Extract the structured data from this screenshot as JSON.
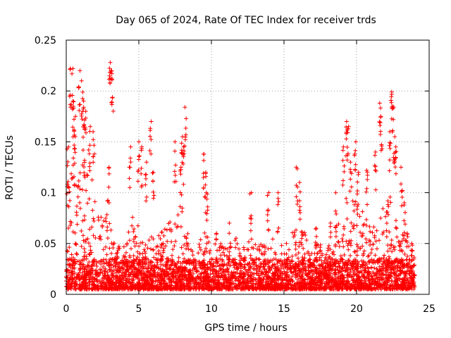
{
  "chart_data": {
    "type": "scatter",
    "title": "Day 065 of 2024, Rate Of TEC Index for receiver trds",
    "xlabel": "GPS time / hours",
    "ylabel": "ROTI / TECUs",
    "xlim": [
      0,
      25
    ],
    "ylim": [
      0,
      0.25
    ],
    "xticks": [
      "0",
      "5",
      "10",
      "15",
      "20",
      "25"
    ],
    "yticks": [
      "0",
      "0.05",
      "0.1",
      "0.15",
      "0.2",
      "0.25"
    ],
    "grid": true,
    "marker": "+",
    "color": "#ff0000",
    "x_extent": [
      0,
      24
    ],
    "y_floor": 0.005,
    "density_envelope": [
      {
        "x": 0.0,
        "y": 0.11
      },
      {
        "x": 0.5,
        "y": 0.14
      },
      {
        "x": 1.0,
        "y": 0.15
      },
      {
        "x": 1.5,
        "y": 0.13
      },
      {
        "x": 2.0,
        "y": 0.1
      },
      {
        "x": 2.5,
        "y": 0.07
      },
      {
        "x": 3.0,
        "y": 0.09
      },
      {
        "x": 3.5,
        "y": 0.05
      },
      {
        "x": 4.0,
        "y": 0.05
      },
      {
        "x": 4.5,
        "y": 0.08
      },
      {
        "x": 5.0,
        "y": 0.07
      },
      {
        "x": 5.5,
        "y": 0.05
      },
      {
        "x": 6.0,
        "y": 0.06
      },
      {
        "x": 6.5,
        "y": 0.06
      },
      {
        "x": 7.0,
        "y": 0.07
      },
      {
        "x": 7.5,
        "y": 0.08
      },
      {
        "x": 8.0,
        "y": 0.09
      },
      {
        "x": 8.5,
        "y": 0.05
      },
      {
        "x": 9.0,
        "y": 0.04
      },
      {
        "x": 9.5,
        "y": 0.08
      },
      {
        "x": 10.0,
        "y": 0.05
      },
      {
        "x": 10.5,
        "y": 0.05
      },
      {
        "x": 11.0,
        "y": 0.05
      },
      {
        "x": 11.5,
        "y": 0.06
      },
      {
        "x": 12.0,
        "y": 0.05
      },
      {
        "x": 12.5,
        "y": 0.06
      },
      {
        "x": 13.0,
        "y": 0.05
      },
      {
        "x": 13.5,
        "y": 0.05
      },
      {
        "x": 14.0,
        "y": 0.07
      },
      {
        "x": 14.5,
        "y": 0.05
      },
      {
        "x": 15.0,
        "y": 0.05
      },
      {
        "x": 15.5,
        "y": 0.06
      },
      {
        "x": 16.0,
        "y": 0.07
      },
      {
        "x": 16.5,
        "y": 0.06
      },
      {
        "x": 17.0,
        "y": 0.05
      },
      {
        "x": 17.5,
        "y": 0.05
      },
      {
        "x": 18.0,
        "y": 0.05
      },
      {
        "x": 18.5,
        "y": 0.06
      },
      {
        "x": 19.0,
        "y": 0.08
      },
      {
        "x": 19.5,
        "y": 0.11
      },
      {
        "x": 20.0,
        "y": 0.09
      },
      {
        "x": 20.5,
        "y": 0.08
      },
      {
        "x": 21.0,
        "y": 0.07
      },
      {
        "x": 21.5,
        "y": 0.08
      },
      {
        "x": 22.0,
        "y": 0.09
      },
      {
        "x": 22.5,
        "y": 0.1
      },
      {
        "x": 23.0,
        "y": 0.07
      },
      {
        "x": 23.5,
        "y": 0.05
      },
      {
        "x": 24.0,
        "y": 0.04
      }
    ],
    "peaks": [
      {
        "x": 0.1,
        "y": 0.145
      },
      {
        "x": 0.3,
        "y": 0.222
      },
      {
        "x": 0.45,
        "y": 0.222
      },
      {
        "x": 0.5,
        "y": 0.19
      },
      {
        "x": 0.6,
        "y": 0.175
      },
      {
        "x": 0.9,
        "y": 0.22
      },
      {
        "x": 1.1,
        "y": 0.21
      },
      {
        "x": 1.2,
        "y": 0.19
      },
      {
        "x": 1.3,
        "y": 0.18
      },
      {
        "x": 1.6,
        "y": 0.165
      },
      {
        "x": 1.9,
        "y": 0.16
      },
      {
        "x": 3.0,
        "y": 0.228
      },
      {
        "x": 3.1,
        "y": 0.22
      },
      {
        "x": 3.2,
        "y": 0.217
      },
      {
        "x": 2.9,
        "y": 0.125
      },
      {
        "x": 4.4,
        "y": 0.145
      },
      {
        "x": 5.0,
        "y": 0.15
      },
      {
        "x": 5.2,
        "y": 0.145
      },
      {
        "x": 5.5,
        "y": 0.13
      },
      {
        "x": 5.8,
        "y": 0.17
      },
      {
        "x": 6.0,
        "y": 0.12
      },
      {
        "x": 7.5,
        "y": 0.15
      },
      {
        "x": 8.0,
        "y": 0.155
      },
      {
        "x": 8.2,
        "y": 0.184
      },
      {
        "x": 8.1,
        "y": 0.145
      },
      {
        "x": 7.9,
        "y": 0.125
      },
      {
        "x": 9.5,
        "y": 0.138
      },
      {
        "x": 9.6,
        "y": 0.12
      },
      {
        "x": 9.7,
        "y": 0.1
      },
      {
        "x": 10.3,
        "y": 0.06
      },
      {
        "x": 11.2,
        "y": 0.07
      },
      {
        "x": 12.7,
        "y": 0.1
      },
      {
        "x": 13.9,
        "y": 0.1
      },
      {
        "x": 14.6,
        "y": 0.1
      },
      {
        "x": 15.9,
        "y": 0.125
      },
      {
        "x": 16.1,
        "y": 0.11
      },
      {
        "x": 17.2,
        "y": 0.065
      },
      {
        "x": 18.2,
        "y": 0.07
      },
      {
        "x": 18.6,
        "y": 0.1
      },
      {
        "x": 19.1,
        "y": 0.145
      },
      {
        "x": 19.3,
        "y": 0.17
      },
      {
        "x": 19.4,
        "y": 0.165
      },
      {
        "x": 19.6,
        "y": 0.13
      },
      {
        "x": 19.9,
        "y": 0.15
      },
      {
        "x": 20.1,
        "y": 0.12
      },
      {
        "x": 20.7,
        "y": 0.122
      },
      {
        "x": 21.3,
        "y": 0.14
      },
      {
        "x": 21.6,
        "y": 0.188
      },
      {
        "x": 21.7,
        "y": 0.175
      },
      {
        "x": 22.3,
        "y": 0.16
      },
      {
        "x": 22.4,
        "y": 0.199
      },
      {
        "x": 22.5,
        "y": 0.185
      },
      {
        "x": 22.6,
        "y": 0.155
      },
      {
        "x": 22.7,
        "y": 0.145
      },
      {
        "x": 23.1,
        "y": 0.125
      },
      {
        "x": 23.3,
        "y": 0.09
      },
      {
        "x": 23.5,
        "y": 0.06
      },
      {
        "x": 23.8,
        "y": 0.05
      }
    ]
  }
}
